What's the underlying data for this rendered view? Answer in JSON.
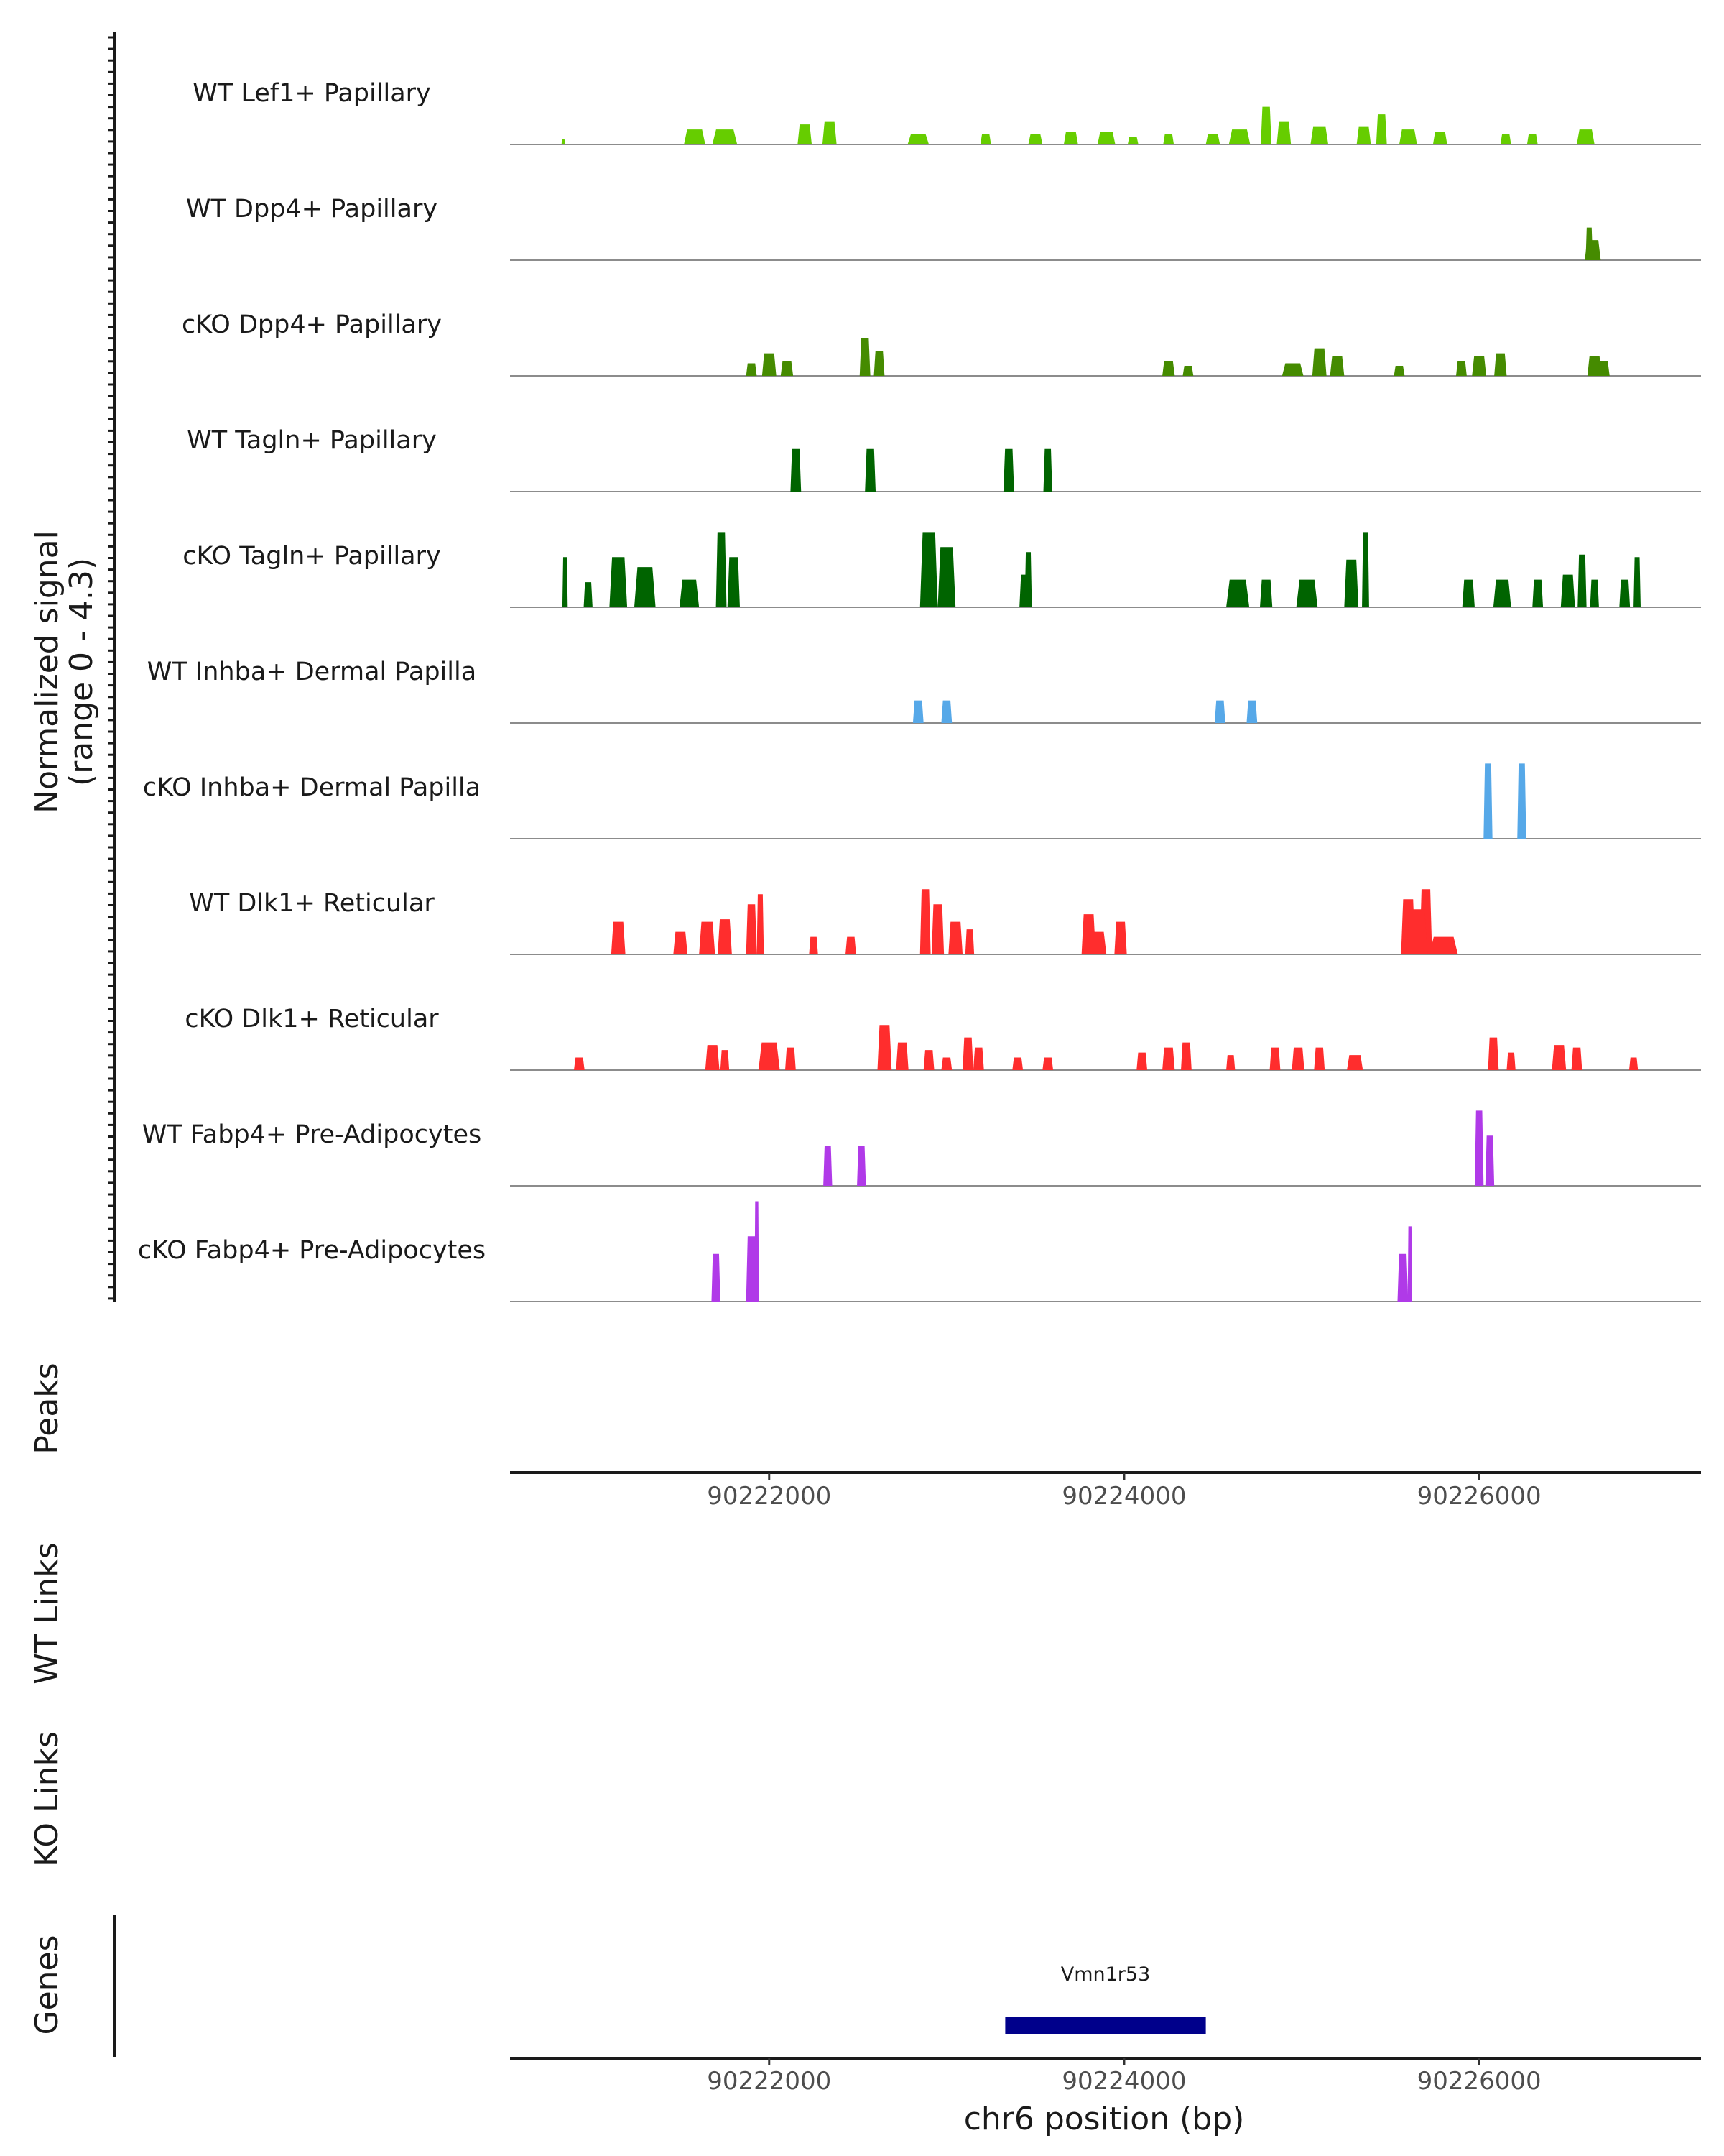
{
  "chart_data": {
    "type": "area",
    "title": "",
    "ylabel": "Normalized signal",
    "ylabel_range": "(range 0 - 4.3)",
    "ylim": [
      0,
      4.3
    ],
    "xlabel": "chr6 position (bp)",
    "xlim": [
      90220540,
      90227250
    ],
    "xticks": [
      90222000,
      90224000,
      90226000
    ],
    "xtick_labels": [
      "90222000",
      "90224000",
      "90226000"
    ],
    "tracks": [
      {
        "name": "WT Lef1+ Papillary",
        "color": "#66cd00",
        "peaks": [
          [
            90220840,
            0.2,
            20
          ],
          [
            90221580,
            0.6,
            120
          ],
          [
            90221750,
            0.6,
            140
          ],
          [
            90222200,
            0.8,
            80
          ],
          [
            90222340,
            0.9,
            80
          ],
          [
            90222840,
            0.4,
            120
          ],
          [
            90223220,
            0.4,
            60
          ],
          [
            90223500,
            0.4,
            80
          ],
          [
            90223700,
            0.5,
            80
          ],
          [
            90223900,
            0.5,
            100
          ],
          [
            90224050,
            0.3,
            60
          ],
          [
            90224250,
            0.4,
            60
          ],
          [
            90224500,
            0.4,
            80
          ],
          [
            90224650,
            0.6,
            120
          ],
          [
            90224800,
            1.5,
            60
          ],
          [
            90224900,
            0.9,
            80
          ],
          [
            90225100,
            0.7,
            100
          ],
          [
            90225350,
            0.7,
            80
          ],
          [
            90225450,
            1.2,
            60
          ],
          [
            90225600,
            0.6,
            100
          ],
          [
            90225780,
            0.5,
            80
          ],
          [
            90226150,
            0.4,
            60
          ],
          [
            90226300,
            0.4,
            60
          ],
          [
            90226600,
            0.6,
            100
          ]
        ]
      },
      {
        "name": "WT Dpp4+ Papillary",
        "color": "#458b00",
        "peaks": [
          [
            90226620,
            1.3,
            40
          ],
          [
            90226640,
            0.8,
            90
          ]
        ]
      },
      {
        "name": "cKO Dpp4+ Papillary",
        "color": "#458b00",
        "peaks": [
          [
            90221900,
            0.5,
            60
          ],
          [
            90222000,
            0.9,
            80
          ],
          [
            90222100,
            0.6,
            70
          ],
          [
            90222540,
            1.5,
            60
          ],
          [
            90222620,
            1.0,
            60
          ],
          [
            90224250,
            0.6,
            70
          ],
          [
            90224360,
            0.4,
            60
          ],
          [
            90224950,
            0.5,
            120
          ],
          [
            90225100,
            1.1,
            80
          ],
          [
            90225200,
            0.8,
            80
          ],
          [
            90225550,
            0.4,
            60
          ],
          [
            90225900,
            0.6,
            60
          ],
          [
            90226000,
            0.8,
            80
          ],
          [
            90226120,
            0.9,
            70
          ],
          [
            90226650,
            0.8,
            80
          ],
          [
            90226700,
            0.6,
            70
          ]
        ]
      },
      {
        "name": "WT Tagln+ Papillary",
        "color": "#006400",
        "peaks": [
          [
            90222150,
            1.7,
            60
          ],
          [
            90222570,
            1.7,
            60
          ],
          [
            90223350,
            1.7,
            60
          ],
          [
            90223570,
            1.7,
            50
          ]
        ]
      },
      {
        "name": "cKO Tagln+ Papillary",
        "color": "#006400",
        "peaks": [
          [
            90220850,
            2.0,
            30
          ],
          [
            90220980,
            1.0,
            50
          ],
          [
            90221150,
            2.0,
            100
          ],
          [
            90221300,
            1.6,
            120
          ],
          [
            90221550,
            1.1,
            110
          ],
          [
            90221730,
            3.0,
            60
          ],
          [
            90221800,
            2.0,
            70
          ],
          [
            90222900,
            3.0,
            100
          ],
          [
            90223000,
            2.4,
            100
          ],
          [
            90223440,
            1.3,
            60
          ],
          [
            90223460,
            2.2,
            40
          ],
          [
            90224640,
            1.1,
            130
          ],
          [
            90224800,
            1.1,
            70
          ],
          [
            90225030,
            1.1,
            120
          ],
          [
            90225280,
            1.9,
            80
          ],
          [
            90225360,
            3.0,
            40
          ],
          [
            90225940,
            1.1,
            70
          ],
          [
            90226130,
            1.1,
            100
          ],
          [
            90226330,
            1.1,
            60
          ],
          [
            90226500,
            1.3,
            80
          ],
          [
            90226580,
            2.1,
            50
          ],
          [
            90226650,
            1.1,
            50
          ],
          [
            90226820,
            1.1,
            60
          ],
          [
            90226890,
            2.0,
            40
          ]
        ]
      },
      {
        "name": "WT Inhba+ Dermal Papilla",
        "color": "#56a8e8",
        "peaks": [
          [
            90222840,
            0.9,
            60
          ],
          [
            90223000,
            0.9,
            60
          ],
          [
            90224540,
            0.9,
            60
          ],
          [
            90224720,
            0.9,
            60
          ]
        ]
      },
      {
        "name": "cKO Inhba+ Dermal Papilla",
        "color": "#56a8e8",
        "peaks": [
          [
            90226050,
            3.0,
            50
          ],
          [
            90226240,
            3.0,
            50
          ]
        ]
      },
      {
        "name": "WT Dlk1+ Reticular",
        "color": "#ff2d2d",
        "peaks": [
          [
            90221150,
            1.3,
            80
          ],
          [
            90221500,
            0.9,
            80
          ],
          [
            90221650,
            1.3,
            90
          ],
          [
            90221750,
            1.4,
            80
          ],
          [
            90221900,
            2.0,
            60
          ],
          [
            90221950,
            2.4,
            40
          ],
          [
            90222250,
            0.7,
            50
          ],
          [
            90222460,
            0.7,
            60
          ],
          [
            90222880,
            2.6,
            60
          ],
          [
            90222950,
            2.0,
            70
          ],
          [
            90223050,
            1.3,
            80
          ],
          [
            90223130,
            1.0,
            50
          ],
          [
            90223800,
            1.6,
            80
          ],
          [
            90223850,
            0.9,
            100
          ],
          [
            90223980,
            1.3,
            70
          ],
          [
            90225600,
            2.2,
            80
          ],
          [
            90225700,
            2.6,
            70
          ],
          [
            90225650,
            1.8,
            120
          ],
          [
            90225800,
            0.7,
            160
          ]
        ]
      },
      {
        "name": "cKO Dlk1+ Reticular",
        "color": "#ff2d2d",
        "peaks": [
          [
            90220930,
            0.5,
            60
          ],
          [
            90221680,
            1.0,
            80
          ],
          [
            90221750,
            0.8,
            50
          ],
          [
            90222000,
            1.1,
            120
          ],
          [
            90222120,
            0.9,
            60
          ],
          [
            90222650,
            1.8,
            80
          ],
          [
            90222750,
            1.1,
            70
          ],
          [
            90222900,
            0.8,
            60
          ],
          [
            90223000,
            0.5,
            60
          ],
          [
            90223120,
            1.3,
            60
          ],
          [
            90223180,
            0.9,
            60
          ],
          [
            90223400,
            0.5,
            60
          ],
          [
            90223570,
            0.5,
            60
          ],
          [
            90224100,
            0.7,
            60
          ],
          [
            90224250,
            0.9,
            70
          ],
          [
            90224350,
            1.1,
            60
          ],
          [
            90224600,
            0.6,
            50
          ],
          [
            90224850,
            0.9,
            60
          ],
          [
            90224980,
            0.9,
            70
          ],
          [
            90225100,
            0.9,
            60
          ],
          [
            90225300,
            0.6,
            90
          ],
          [
            90226080,
            1.3,
            60
          ],
          [
            90226180,
            0.7,
            50
          ],
          [
            90226450,
            1.0,
            80
          ],
          [
            90226550,
            0.9,
            60
          ],
          [
            90226870,
            0.5,
            50
          ]
        ]
      },
      {
        "name": "WT Fabp4+ Pre-Adipocytes",
        "color": "#b03ae8",
        "peaks": [
          [
            90222330,
            1.6,
            50
          ],
          [
            90222520,
            1.6,
            50
          ],
          [
            90226000,
            3.0,
            50
          ],
          [
            90226060,
            2.0,
            50
          ]
        ]
      },
      {
        "name": "cKO Fabp4+ Pre-Adipocytes",
        "color": "#b03ae8",
        "peaks": [
          [
            90221700,
            1.9,
            50
          ],
          [
            90221900,
            2.6,
            60
          ],
          [
            90221930,
            4.0,
            25
          ],
          [
            90225570,
            1.9,
            60
          ],
          [
            90225610,
            3.0,
            25
          ]
        ]
      }
    ],
    "panels": {
      "peaks": "Peaks",
      "wt_links": "WT Links",
      "ko_links": "KO Links",
      "genes": "Genes"
    },
    "gene": {
      "name": "Vmn1r53",
      "start": 90223330,
      "end": 90224460,
      "color": "#00008b"
    }
  }
}
